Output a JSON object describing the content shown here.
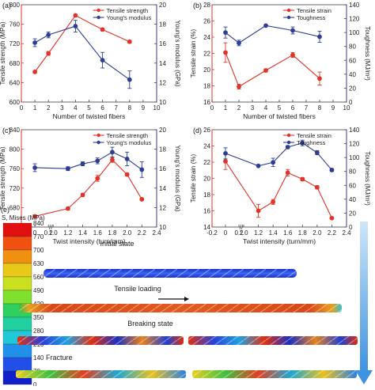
{
  "colors": {
    "red": "#e0332a",
    "blue": "#2f3d93",
    "axis": "#3a3a8c",
    "arrow": "#5aa6e6"
  },
  "chart_data": [
    {
      "panel": "(a)",
      "type": "line",
      "xlabel": "Number of twisted fibers",
      "ylabel_left": "Tensile strength (MPa)",
      "ylabel_right": "Young's modulus (GPa)",
      "xlim": [
        0,
        10
      ],
      "ylim_left": [
        600,
        800
      ],
      "ylim_right": [
        10,
        20
      ],
      "xticks": [
        "0",
        "1",
        "2",
        "3",
        "4",
        "5",
        "6",
        "7",
        "8",
        "9",
        "10"
      ],
      "yticks_left": [
        "600",
        "640",
        "680",
        "720",
        "760",
        "800"
      ],
      "yticks_right": [
        "10",
        "12",
        "14",
        "16",
        "18",
        "20"
      ],
      "series": [
        {
          "name": "Tensile strength",
          "color": "red",
          "axis": "left",
          "x": [
            1,
            2,
            4,
            6,
            8
          ],
          "y": [
            662,
            700,
            778,
            749,
            724
          ],
          "err": [
            3,
            4,
            2,
            3,
            3
          ]
        },
        {
          "name": "Young's modulus",
          "color": "blue",
          "axis": "right",
          "x": [
            1,
            2,
            4,
            6,
            8
          ],
          "y": [
            16.1,
            16.9,
            17.8,
            14.3,
            12.3
          ],
          "err": [
            0.4,
            0.3,
            0.6,
            0.8,
            0.9
          ]
        }
      ]
    },
    {
      "panel": "(b)",
      "type": "line",
      "xlabel": "Number of twisted fibers",
      "ylabel_left": "Tensile strain (%)",
      "ylabel_right": "Toughness (MJ/m³)",
      "xlim": [
        0,
        10
      ],
      "ylim_left": [
        16,
        28
      ],
      "ylim_right": [
        0,
        140
      ],
      "xticks": [
        "0",
        "1",
        "2",
        "3",
        "4",
        "5",
        "6",
        "7",
        "8",
        "9",
        "10"
      ],
      "yticks_left": [
        "16",
        "18",
        "20",
        "22",
        "24",
        "26",
        "28"
      ],
      "yticks_right": [
        "0",
        "20",
        "40",
        "60",
        "80",
        "100",
        "120",
        "140"
      ],
      "series": [
        {
          "name": "Tensile strain",
          "color": "red",
          "axis": "left",
          "x": [
            1,
            2,
            4,
            6,
            8
          ],
          "y": [
            22.1,
            17.9,
            19.9,
            21.8,
            18.9
          ],
          "err": [
            1.2,
            0.3,
            0.2,
            0.3,
            0.8
          ]
        },
        {
          "name": "Toughness",
          "color": "blue",
          "axis": "right",
          "x": [
            1,
            2,
            4,
            6,
            8
          ],
          "y": [
            100,
            85,
            110,
            103,
            94
          ],
          "err": [
            8,
            4,
            0,
            5,
            8
          ]
        }
      ]
    },
    {
      "panel": "(c)",
      "type": "line",
      "xlabel": "Twist intensity (turn/mm)",
      "ylabel_left": "Tensile strength (MPa)",
      "ylabel_right": "Young's modulus (GPa)",
      "xlim": [
        -0.2,
        2.4
      ],
      "ylim_left": [
        640,
        840
      ],
      "ylim_right": [
        10,
        20
      ],
      "xticks": [
        "-0.2",
        "0",
        "0.2",
        "1.0",
        "1.2",
        "1.4",
        "1.6",
        "1.8",
        "2.0",
        "2.2",
        "2.4"
      ],
      "yticks_left": [
        "640",
        "680",
        "720",
        "760",
        "800",
        "840"
      ],
      "yticks_right": [
        "10",
        "12",
        "14",
        "16",
        "18",
        "20"
      ],
      "series": [
        {
          "name": "Tensile strength",
          "color": "red",
          "axis": "left",
          "x": [
            "0",
            "1.2",
            "1.4",
            "1.6",
            "1.8",
            "2.0",
            "2.2"
          ],
          "y": [
            662,
            678,
            706,
            740,
            778,
            748,
            697
          ],
          "err": [
            3,
            3,
            3,
            6,
            5,
            3,
            2
          ]
        },
        {
          "name": "Young's modulus",
          "color": "blue",
          "axis": "right",
          "x": [
            "0",
            "1.2",
            "1.4",
            "1.6",
            "1.8",
            "2.0",
            "2.2"
          ],
          "y": [
            16.1,
            16.0,
            16.5,
            16.8,
            17.7,
            17.0,
            15.9
          ],
          "err": [
            0.4,
            0.2,
            0.2,
            0.3,
            0.5,
            0.7,
            0.8
          ]
        }
      ]
    },
    {
      "panel": "(d)",
      "type": "line",
      "xlabel": "Twist intensity (turn/mm)",
      "ylabel_left": "Tensile strain (%)",
      "ylabel_right": "Toughness (MJ/m³)",
      "xlim": [
        -0.2,
        2.4
      ],
      "ylim_left": [
        14,
        26
      ],
      "ylim_right": [
        0,
        140
      ],
      "xticks": [
        "-0.2",
        "0",
        "0.2",
        "1.0",
        "1.2",
        "1.4",
        "1.6",
        "1.8",
        "2.0",
        "2.2",
        "2.4"
      ],
      "yticks_left": [
        "14",
        "16",
        "18",
        "20",
        "22",
        "24",
        "26"
      ],
      "yticks_right": [
        "0",
        "20",
        "40",
        "60",
        "80",
        "100",
        "120",
        "140"
      ],
      "series": [
        {
          "name": "Tensile strain",
          "color": "red",
          "axis": "left",
          "x": [
            "0",
            "1.2",
            "1.4",
            "1.6",
            "1.8",
            "2.0",
            "2.2"
          ],
          "y": [
            22.1,
            16.0,
            17.1,
            20.7,
            19.9,
            18.9,
            15.1
          ],
          "err": [
            1.0,
            0.8,
            0.3,
            0.4,
            0.2,
            0.2,
            0.1
          ]
        },
        {
          "name": "Toughness",
          "color": "blue",
          "axis": "right",
          "x": [
            "0",
            "1.2",
            "1.4",
            "1.6",
            "1.8",
            "2.0",
            "2.2"
          ],
          "y": [
            106,
            88,
            93,
            115,
            121,
            107,
            82
          ],
          "err": [
            8,
            0,
            6,
            2,
            4,
            3,
            2
          ]
        }
      ]
    }
  ],
  "panel_e": {
    "label": "(e)",
    "colorbar_title": "S, Mises (MPa)",
    "colorbar_ticks": [
      "840",
      "770",
      "700",
      "630",
      "560",
      "490",
      "420",
      "350",
      "280",
      "210",
      "140",
      "70",
      "0"
    ],
    "states": [
      "Initial state",
      "Tensile loading",
      "Breaking state",
      "Fracture"
    ]
  }
}
